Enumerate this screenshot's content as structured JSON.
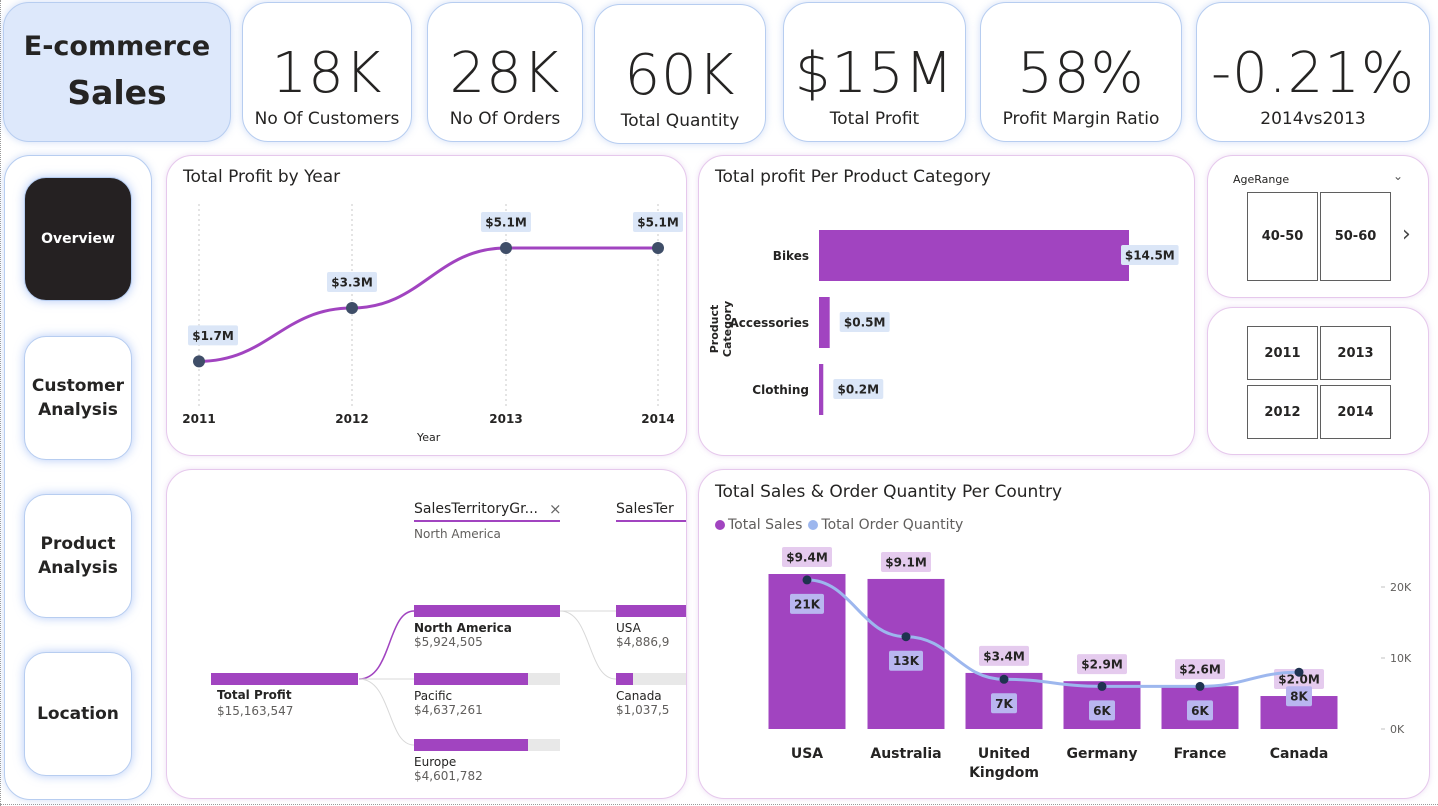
{
  "title": {
    "line1": "E-commerce",
    "line2": "Sales"
  },
  "kpis": [
    {
      "value": "18K",
      "label": "No Of Customers"
    },
    {
      "value": "28K",
      "label": "No Of Orders"
    },
    {
      "value": "60K",
      "label": "Total Quantity"
    },
    {
      "value": "$15M",
      "label": "Total Profit"
    },
    {
      "value": "58%",
      "label": "Profit Margin Ratio"
    },
    {
      "value": "-0.21%",
      "label": "2014vs2013"
    }
  ],
  "nav": {
    "overview": "Overview",
    "customer": [
      "Customer",
      "Analysis"
    ],
    "product": [
      "Product",
      "Analysis"
    ],
    "location": "Location"
  },
  "profit_by_year": {
    "title": "Total Profit by Year",
    "xlabel": "Year"
  },
  "profit_by_category": {
    "title": "Total profit Per Product Category",
    "ylabel": "Product Category"
  },
  "slicer_age": {
    "title": "AgeRange",
    "options": [
      "40-50",
      "50-60"
    ]
  },
  "slicer_year": {
    "options": [
      "2011",
      "2013",
      "2012",
      "2014"
    ]
  },
  "decomp": {
    "col1_header": "SalesTerritoryGr...",
    "col1_sub": "North America",
    "col2_header": "SalesTer",
    "root": {
      "label": "Total Profit",
      "value": "$15,163,547"
    },
    "level1": [
      {
        "label": "North America",
        "value": "$5,924,505",
        "share": 1.0
      },
      {
        "label": "Pacific",
        "value": "$4,637,261",
        "share": 0.78
      },
      {
        "label": "Europe",
        "value": "$4,601,782",
        "share": 0.78
      }
    ],
    "level2": [
      {
        "label": "USA",
        "value": "$4,886,9",
        "share": 1.0
      },
      {
        "label": "Canada",
        "value": "$1,037,5",
        "share": 0.21
      }
    ]
  },
  "country_chart": {
    "title": "Total Sales & Order Quantity Per Country",
    "legend": [
      "Total Sales",
      "Total Order Quantity"
    ],
    "y2_ticks": [
      "20K",
      "10K",
      "0K"
    ]
  },
  "colors": {
    "purple": "#a144c0",
    "line_blue": "#9db7ee",
    "marker": "#3f4e68",
    "label_bg": "#dbe6f7",
    "label_purple_bg": "#e5cbee",
    "qty_label_bg": "#b9b6f0"
  },
  "chart_data": [
    {
      "type": "line",
      "title": "Total Profit by Year",
      "xlabel": "Year",
      "x": [
        "2011",
        "2012",
        "2013",
        "2014"
      ],
      "values": [
        1.7,
        3.3,
        5.1,
        5.1
      ],
      "labels": [
        "$1.7M",
        "$3.3M",
        "$5.1M",
        "$5.1M"
      ],
      "ylim": [
        0,
        6
      ]
    },
    {
      "type": "bar",
      "title": "Total profit Per Product Category",
      "ylabel": "Product Category",
      "categories": [
        "Bikes",
        "Accessories",
        "Clothing"
      ],
      "values": [
        14.5,
        0.5,
        0.2
      ],
      "labels": [
        "$14.5M",
        "$0.5M",
        "$0.2M"
      ]
    },
    {
      "type": "bar",
      "title": "Total Sales & Order Quantity Per Country",
      "categories": [
        "USA",
        "Australia",
        "United Kingdom",
        "Germany",
        "France",
        "Canada"
      ],
      "series": [
        {
          "name": "Total Sales",
          "values": [
            9.4,
            9.1,
            3.4,
            2.9,
            2.6,
            2.0
          ],
          "labels": [
            "$9.4M",
            "$9.1M",
            "$3.4M",
            "$2.9M",
            "$2.6M",
            "$2.0M"
          ]
        },
        {
          "name": "Total Order Quantity",
          "values": [
            21,
            13,
            7,
            6,
            6,
            8
          ],
          "labels": [
            "21K",
            "13K",
            "7K",
            "6K",
            "6K",
            "8K"
          ]
        }
      ],
      "y2_range": [
        0,
        20
      ]
    }
  ]
}
